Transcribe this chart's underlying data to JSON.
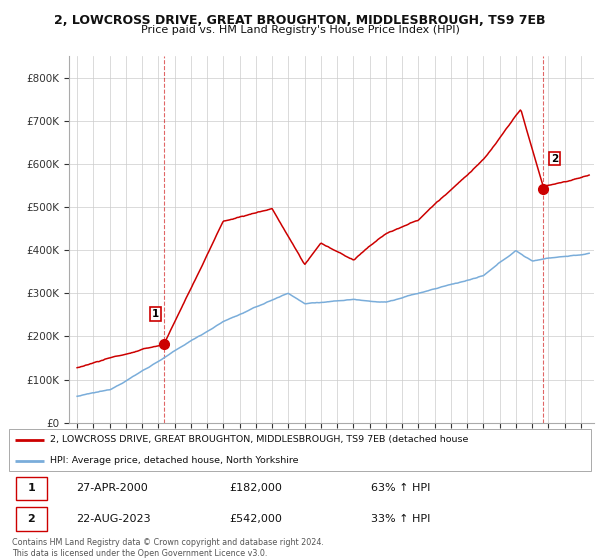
{
  "title": "2, LOWCROSS DRIVE, GREAT BROUGHTON, MIDDLESBROUGH, TS9 7EB",
  "subtitle": "Price paid vs. HM Land Registry's House Price Index (HPI)",
  "ylim": [
    0,
    850000
  ],
  "yticks": [
    0,
    100000,
    200000,
    300000,
    400000,
    500000,
    600000,
    700000,
    800000
  ],
  "ytick_labels": [
    "£0",
    "£100K",
    "£200K",
    "£300K",
    "£400K",
    "£500K",
    "£600K",
    "£700K",
    "£800K"
  ],
  "sale1_x": 2000.33,
  "sale1_y": 182000,
  "sale2_x": 2023.67,
  "sale2_y": 542000,
  "hpi_color": "#7aadda",
  "price_color": "#cc0000",
  "grid_color": "#cccccc",
  "background_color": "#ffffff",
  "legend_line1": "2, LOWCROSS DRIVE, GREAT BROUGHTON, MIDDLESBROUGH, TS9 7EB (detached house",
  "legend_line2": "HPI: Average price, detached house, North Yorkshire",
  "table_row1": [
    "1",
    "27-APR-2000",
    "£182,000",
    "63% ↑ HPI"
  ],
  "table_row2": [
    "2",
    "22-AUG-2023",
    "£542,000",
    "33% ↑ HPI"
  ],
  "footnote": "Contains HM Land Registry data © Crown copyright and database right 2024.\nThis data is licensed under the Open Government Licence v3.0.",
  "xmin": 1994.5,
  "xmax": 2026.8,
  "x_tick_start": 1995,
  "x_tick_end": 2026
}
